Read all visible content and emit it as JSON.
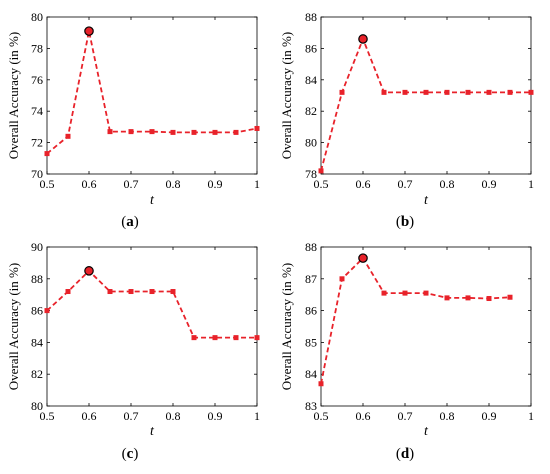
{
  "chart_data": [
    {
      "type": "line",
      "caption_open": "(",
      "caption_letter": "a",
      "caption_close": ")",
      "xlabel": "t",
      "ylabel": "Overall Accuracy (in %)",
      "xlim": [
        0.5,
        1
      ],
      "ylim": [
        70,
        80
      ],
      "xticks": [
        0.5,
        0.6,
        0.7,
        0.8,
        0.9,
        1
      ],
      "xtick_labels": [
        "0.5",
        "0.6",
        "0.7",
        "0.8",
        "0.9",
        "1"
      ],
      "yticks": [
        70,
        72,
        74,
        76,
        78,
        80
      ],
      "ytick_labels": [
        "70",
        "72",
        "74",
        "76",
        "78",
        "80"
      ],
      "x": [
        0.5,
        0.55,
        0.6,
        0.65,
        0.7,
        0.75,
        0.8,
        0.85,
        0.9,
        0.95,
        1.0
      ],
      "y": [
        71.3,
        72.4,
        79.1,
        72.7,
        72.7,
        72.7,
        72.65,
        72.65,
        72.65,
        72.65,
        72.9
      ],
      "highlight_x": 0.6,
      "highlight_y": 79.1,
      "line_color": "#e8222a",
      "line_style": "dashed",
      "marker": "square",
      "highlight_marker": "circle",
      "grid": false
    },
    {
      "type": "line",
      "caption_open": "(",
      "caption_letter": "b",
      "caption_close": ")",
      "xlabel": "t",
      "ylabel": "Overall Accuracy (in %)",
      "xlim": [
        0.5,
        1
      ],
      "ylim": [
        78,
        88
      ],
      "xticks": [
        0.5,
        0.6,
        0.7,
        0.8,
        0.9,
        1
      ],
      "xtick_labels": [
        "0.5",
        "0.6",
        "0.7",
        "0.8",
        "0.9",
        "1"
      ],
      "yticks": [
        78,
        80,
        82,
        84,
        86,
        88
      ],
      "ytick_labels": [
        "78",
        "80",
        "82",
        "84",
        "86",
        "88"
      ],
      "x": [
        0.5,
        0.55,
        0.6,
        0.65,
        0.7,
        0.75,
        0.8,
        0.85,
        0.9,
        0.95,
        1.0
      ],
      "y": [
        78.2,
        83.2,
        86.6,
        83.2,
        83.2,
        83.2,
        83.2,
        83.2,
        83.2,
        83.2,
        83.2
      ],
      "highlight_x": 0.6,
      "highlight_y": 86.6,
      "line_color": "#e8222a",
      "line_style": "dashed",
      "marker": "square",
      "highlight_marker": "circle",
      "grid": false
    },
    {
      "type": "line",
      "caption_open": "(",
      "caption_letter": "c",
      "caption_close": ")",
      "xlabel": "t",
      "ylabel": "Overall Accuracy (in %)",
      "xlim": [
        0.5,
        1
      ],
      "ylim": [
        80,
        90
      ],
      "xticks": [
        0.5,
        0.6,
        0.7,
        0.8,
        0.9,
        1
      ],
      "xtick_labels": [
        "0.5",
        "0.6",
        "0.7",
        "0.8",
        "0.9",
        "1"
      ],
      "yticks": [
        80,
        82,
        84,
        86,
        88,
        90
      ],
      "ytick_labels": [
        "80",
        "82",
        "84",
        "86",
        "88",
        "90"
      ],
      "x": [
        0.5,
        0.55,
        0.6,
        0.65,
        0.7,
        0.75,
        0.8,
        0.85,
        0.9,
        0.95,
        1.0
      ],
      "y": [
        86.0,
        87.2,
        88.5,
        87.2,
        87.2,
        87.2,
        87.2,
        84.3,
        84.3,
        84.3,
        84.3
      ],
      "highlight_x": 0.6,
      "highlight_y": 88.5,
      "line_color": "#e8222a",
      "line_style": "dashed",
      "marker": "square",
      "highlight_marker": "circle",
      "grid": false
    },
    {
      "type": "line",
      "caption_open": "(",
      "caption_letter": "d",
      "caption_close": ")",
      "xlabel": "t",
      "ylabel": "Overall Accuracy (in %)",
      "xlim": [
        0.5,
        1
      ],
      "ylim": [
        83,
        88
      ],
      "xticks": [
        0.5,
        0.6,
        0.7,
        0.8,
        0.9,
        1
      ],
      "xtick_labels": [
        "0.5",
        "0.6",
        "0.7",
        "0.8",
        "0.9",
        "1"
      ],
      "yticks": [
        83,
        84,
        85,
        86,
        87,
        88
      ],
      "ytick_labels": [
        "83",
        "84",
        "85",
        "86",
        "87",
        "88"
      ],
      "x": [
        0.5,
        0.55,
        0.6,
        0.65,
        0.7,
        0.75,
        0.8,
        0.85,
        0.9,
        0.95
      ],
      "y": [
        83.7,
        87.0,
        87.65,
        86.55,
        86.55,
        86.55,
        86.4,
        86.4,
        86.38,
        86.42
      ],
      "highlight_x": 0.6,
      "highlight_y": 87.65,
      "line_color": "#e8222a",
      "line_style": "dashed",
      "marker": "square",
      "highlight_marker": "circle",
      "grid": false
    }
  ]
}
